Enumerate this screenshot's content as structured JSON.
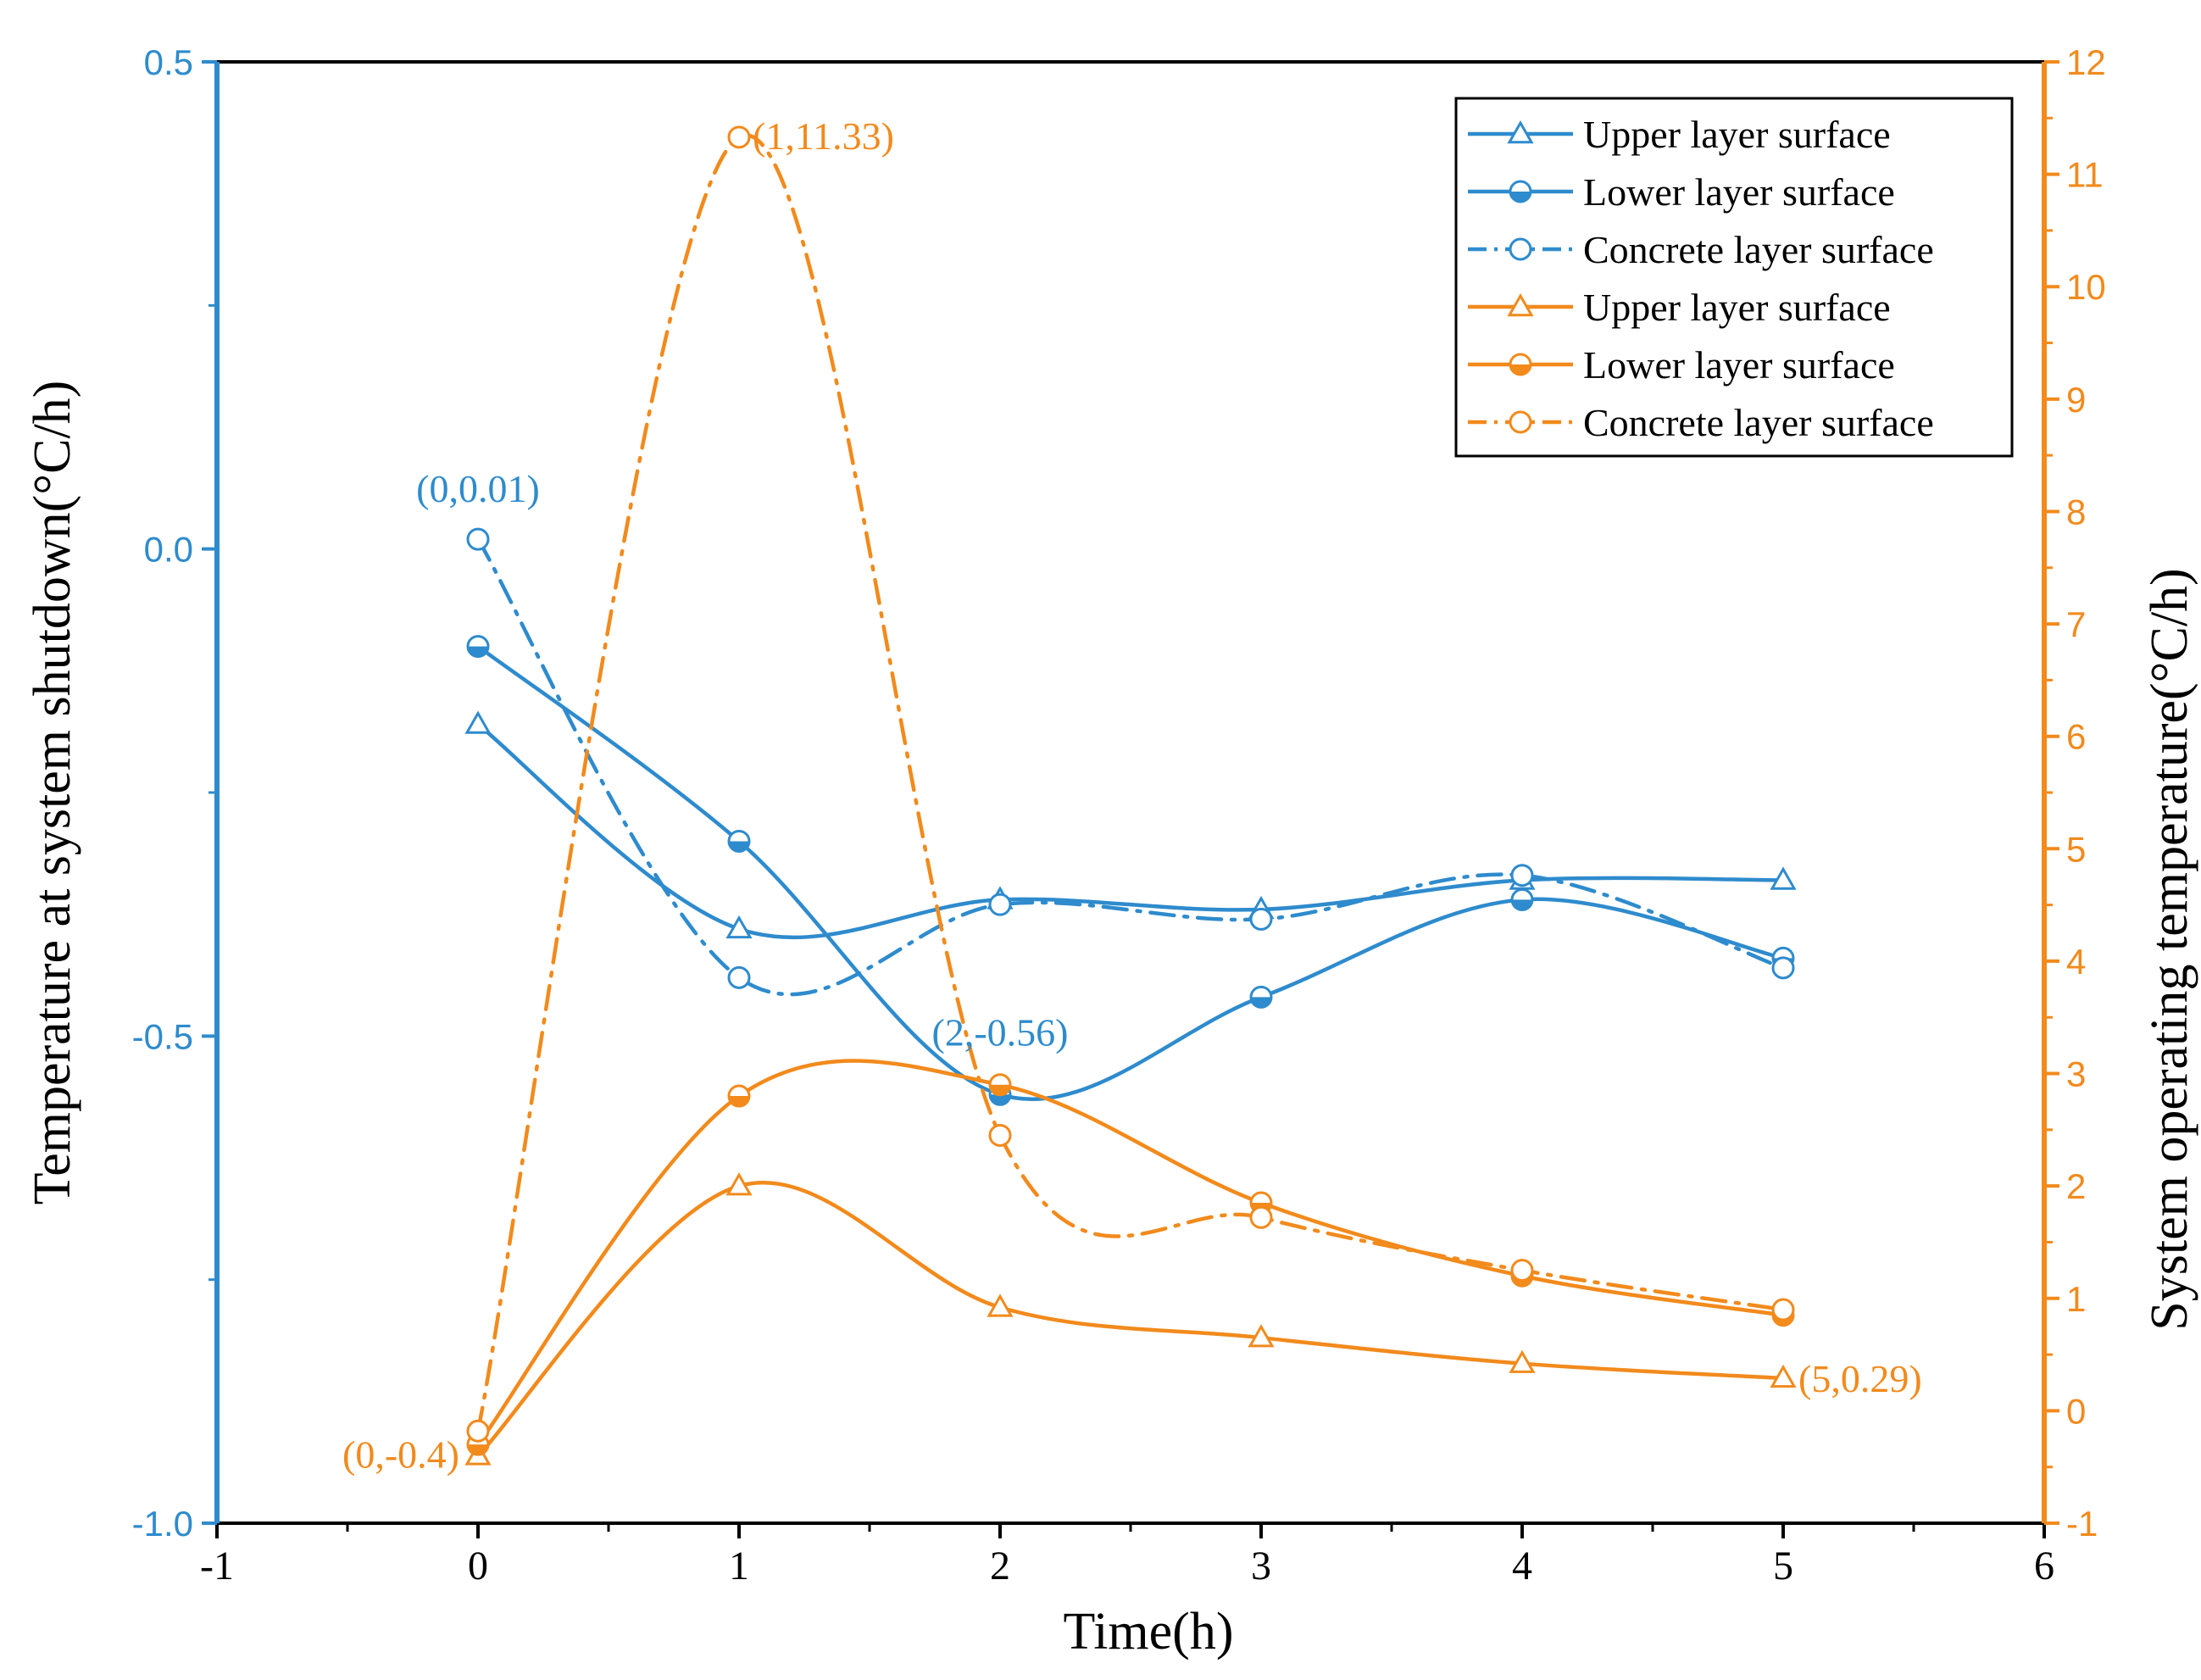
{
  "chart_data": {
    "type": "line",
    "title": "",
    "xlabel": "Time(h)",
    "ylabel_left": "Temperature at system shutdown(°C/h)",
    "ylabel_right": "System operating temperature(°C/h)",
    "xlim": [
      -1,
      6
    ],
    "ylim_left": [
      -1.0,
      0.5
    ],
    "ylim_right": [
      -1,
      12
    ],
    "x_ticks": [
      "-1",
      "0",
      "1",
      "2",
      "3",
      "4",
      "5",
      "6"
    ],
    "y_left_ticks": [
      "-1.0",
      "-0.5",
      "0.0",
      "0.5"
    ],
    "y_right_ticks": [
      "-1",
      "0",
      "1",
      "2",
      "3",
      "4",
      "5",
      "6",
      "7",
      "8",
      "9",
      "10",
      "11",
      "12"
    ],
    "grid": false,
    "legend_position": "top-right",
    "colors": {
      "blue": "#2e8bcd",
      "orange": "#f28a1c",
      "axis": "#000000"
    },
    "series": [
      {
        "name": "Upper layer surface",
        "axis": "left",
        "color": "blue",
        "marker": "triangle",
        "dash": "solid",
        "x": [
          0,
          1,
          2,
          3,
          4,
          5
        ],
        "values": [
          -0.18,
          -0.39,
          -0.36,
          -0.37,
          -0.34,
          -0.34
        ]
      },
      {
        "name": "Lower layer surface",
        "axis": "left",
        "color": "blue",
        "marker": "half-circle",
        "dash": "solid",
        "x": [
          0,
          1,
          2,
          3,
          4,
          5
        ],
        "values": [
          -0.1,
          -0.3,
          -0.56,
          -0.46,
          -0.36,
          -0.42
        ]
      },
      {
        "name": "Concrete layer surface",
        "axis": "left",
        "color": "blue",
        "marker": "open-circle",
        "dash": "dashdot",
        "x": [
          0,
          1,
          2,
          3,
          4,
          5
        ],
        "values": [
          0.01,
          -0.44,
          -0.365,
          -0.38,
          -0.335,
          -0.43
        ]
      },
      {
        "name": "Upper layer surface",
        "axis": "right",
        "color": "orange",
        "marker": "triangle",
        "dash": "solid",
        "x": [
          0,
          1,
          2,
          3,
          4,
          5
        ],
        "values": [
          -0.4,
          2.0,
          0.92,
          0.65,
          0.42,
          0.29
        ]
      },
      {
        "name": "Lower layer surface",
        "axis": "right",
        "color": "orange",
        "marker": "half-circle",
        "dash": "solid",
        "x": [
          0,
          1,
          2,
          3,
          4,
          5
        ],
        "values": [
          -0.3,
          2.8,
          2.9,
          1.85,
          1.2,
          0.85
        ]
      },
      {
        "name": "Concrete layer surface",
        "axis": "right",
        "color": "orange",
        "marker": "open-circle",
        "dash": "dashdot",
        "x": [
          0,
          1,
          2,
          3,
          4,
          5
        ],
        "values": [
          -0.18,
          11.33,
          2.45,
          1.72,
          1.25,
          0.9
        ]
      }
    ],
    "annotations": [
      {
        "text": "(0,0.01)",
        "color": "blue",
        "axis": "left",
        "x": 0,
        "y": 0.01
      },
      {
        "text": "(1,11.33)",
        "color": "orange",
        "axis": "right",
        "x": 1,
        "y": 11.33
      },
      {
        "text": "(2,-0.56)",
        "color": "blue",
        "axis": "left",
        "x": 2,
        "y": -0.56
      },
      {
        "text": "(0,-0.4)",
        "color": "orange",
        "axis": "right",
        "x": 0,
        "y": -0.4
      },
      {
        "text": "(5,0.29)",
        "color": "orange",
        "axis": "right",
        "x": 5,
        "y": 0.29
      }
    ]
  }
}
